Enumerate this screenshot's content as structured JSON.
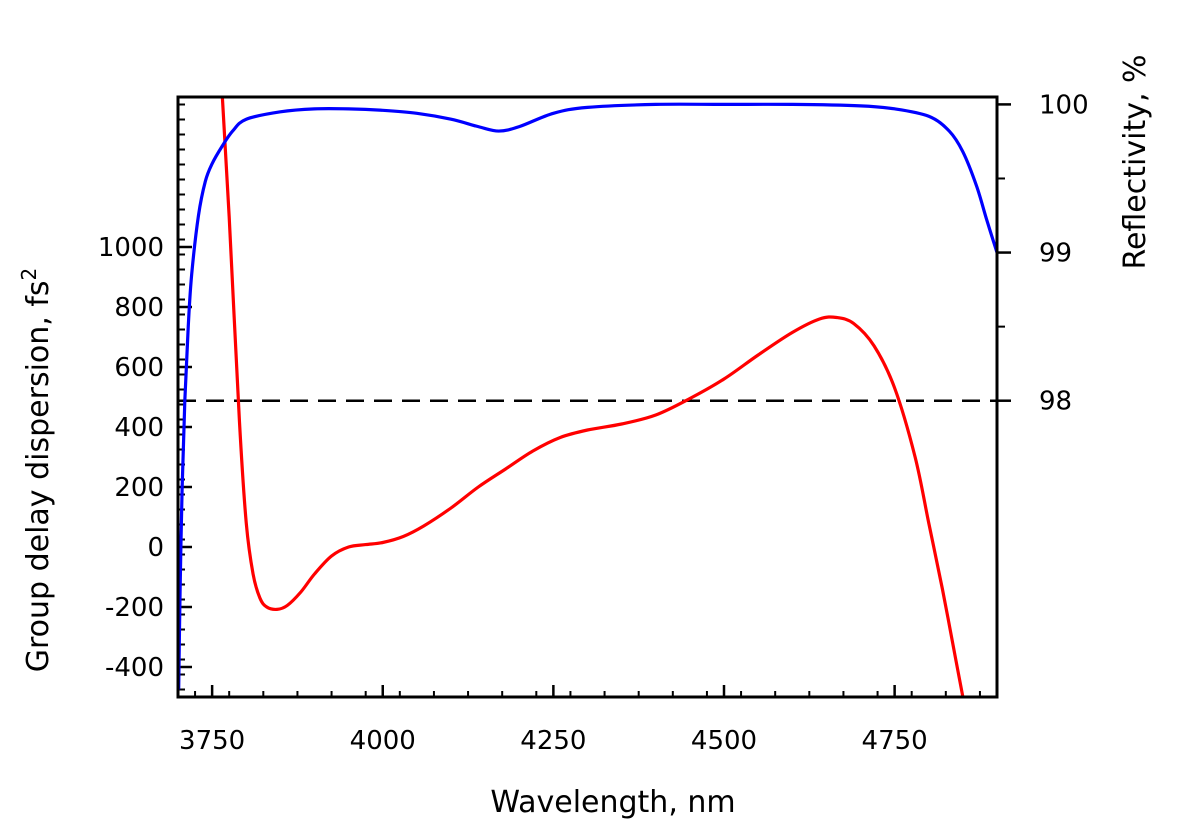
{
  "chart_data": {
    "type": "line",
    "xlabel": "Wavelength, nm",
    "ylabel": "Group delay dispersion, fs",
    "ylabel_superscript": "2",
    "y2label": "Reflectivity, %",
    "xlim": [
      3700,
      4900
    ],
    "ylim": [
      -500,
      1500
    ],
    "y2lim": [
      96,
      100.05
    ],
    "xticks": [
      3750,
      4000,
      4250,
      4500,
      4750
    ],
    "xtick_labels": [
      "3750",
      "4000",
      "4250",
      "4500",
      "4750"
    ],
    "yticks": [
      -400,
      -200,
      0,
      200,
      400,
      600,
      800,
      1000
    ],
    "ytick_labels": [
      "-400",
      "-200",
      "0",
      "200",
      "400",
      "600",
      "800",
      "1000"
    ],
    "y2ticks": [
      98,
      99,
      100
    ],
    "y2tick_labels": [
      "98",
      "99",
      "100"
    ],
    "reference_line": {
      "axis": "y2",
      "value": 98,
      "style": "dashed",
      "color": "#000000"
    },
    "series": [
      {
        "axis": "y",
        "color": "#ff0000",
        "x": [
          3765,
          3775,
          3790,
          3800,
          3810,
          3820,
          3830,
          3845,
          3860,
          3880,
          3900,
          3925,
          3950,
          3975,
          4000,
          4030,
          4060,
          4100,
          4140,
          4180,
          4220,
          4260,
          4300,
          4350,
          4400,
          4450,
          4500,
          4550,
          4600,
          4640,
          4665,
          4690,
          4720,
          4750,
          4780,
          4800,
          4820,
          4840,
          4850
        ],
        "y": [
          1500,
          1100,
          420,
          80,
          -90,
          -170,
          -200,
          -208,
          -195,
          -150,
          -90,
          -30,
          0,
          8,
          15,
          35,
          70,
          130,
          200,
          260,
          320,
          365,
          390,
          410,
          440,
          495,
          560,
          640,
          715,
          760,
          765,
          745,
          670,
          530,
          300,
          80,
          -140,
          -380,
          -500
        ]
      },
      {
        "axis": "y2",
        "color": "#0000ff",
        "x": [
          3701,
          3703,
          3706,
          3710,
          3715,
          3720,
          3730,
          3740,
          3750,
          3765,
          3780,
          3800,
          3850,
          3900,
          3950,
          4000,
          4050,
          4100,
          4140,
          4170,
          4200,
          4250,
          4300,
          4400,
          4500,
          4600,
          4700,
          4750,
          4800,
          4830,
          4850,
          4870,
          4885,
          4900
        ],
        "y": [
          96.05,
          96.7,
          97.4,
          98.0,
          98.5,
          98.85,
          99.25,
          99.48,
          99.6,
          99.72,
          99.82,
          99.9,
          99.95,
          99.97,
          99.97,
          99.96,
          99.94,
          99.9,
          99.85,
          99.82,
          99.85,
          99.94,
          99.98,
          100.0,
          100.0,
          100.0,
          99.99,
          99.97,
          99.92,
          99.82,
          99.68,
          99.45,
          99.22,
          99.0
        ]
      }
    ]
  }
}
